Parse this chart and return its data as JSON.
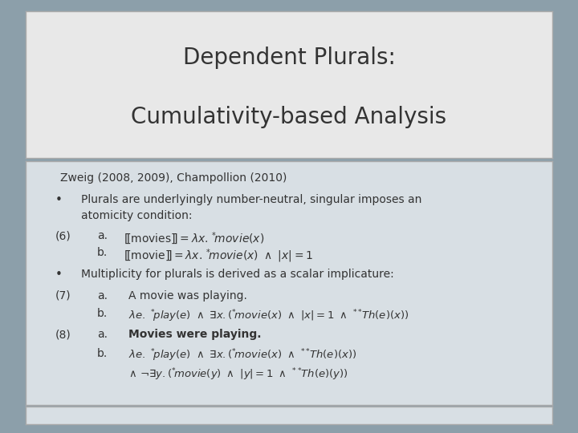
{
  "title_line1": "Dependent Plurals:",
  "title_line2": "Cumulativity-based Analysis",
  "title_fontsize": 20,
  "subtitle": "Zweig (2008, 2009), Champollion (2010)",
  "subtitle_fontsize": 10,
  "bg_outer": "#8c9faa",
  "bg_title": "#e8e8e8",
  "bg_content": "#d8dfe4",
  "border_color": "#aaaaaa",
  "text_color": "#333333"
}
